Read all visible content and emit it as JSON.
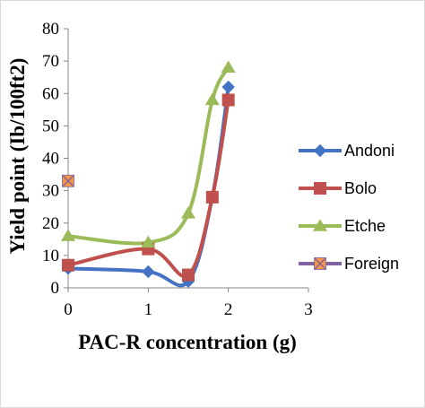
{
  "chart_data": {
    "type": "line",
    "title": "",
    "xlabel": "PAC-R concentration (g)",
    "ylabel": "Yield point (Ib/100ft2)",
    "xlim": [
      0,
      3
    ],
    "ylim": [
      0,
      80
    ],
    "x_ticks": [
      0,
      1,
      2,
      3
    ],
    "y_ticks": [
      0,
      10,
      20,
      30,
      40,
      50,
      60,
      70,
      80
    ],
    "grid": false,
    "legend_position": "right",
    "series": [
      {
        "name": "Andoni",
        "color": "#4472C4",
        "marker": "diamond",
        "x": [
          0,
          1,
          1.5,
          1.8,
          2
        ],
        "y": [
          6,
          5,
          2,
          28,
          62
        ]
      },
      {
        "name": "Bolo",
        "color": "#C0504D",
        "marker": "square",
        "x": [
          0,
          1,
          1.5,
          1.8,
          2
        ],
        "y": [
          7,
          12,
          4,
          28,
          58
        ]
      },
      {
        "name": "Etche",
        "color": "#9BBB59",
        "marker": "triangle",
        "x": [
          0,
          1,
          1.5,
          1.8,
          2
        ],
        "y": [
          16,
          14,
          23,
          58,
          68
        ]
      },
      {
        "name": "Foreign",
        "color": "#8064A2",
        "marker": "x-square",
        "marker_fill": "#F79646",
        "x": [
          0
        ],
        "y": [
          33
        ]
      }
    ]
  }
}
